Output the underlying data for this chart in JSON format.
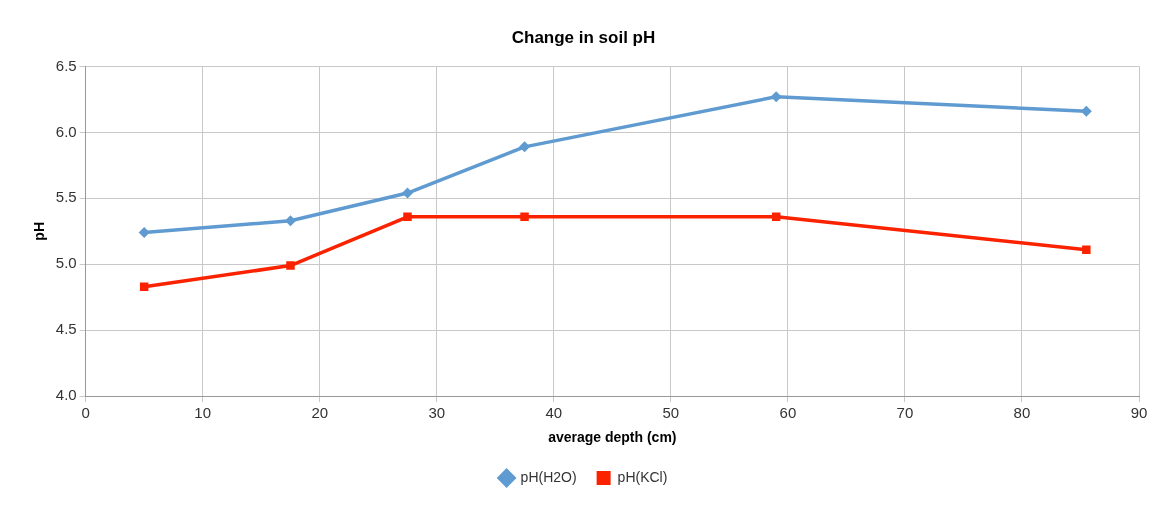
{
  "chart_data": {
    "type": "line",
    "title": "Change in soil pH",
    "xlabel": "average depth (cm)",
    "ylabel": "pH",
    "xlim": [
      0,
      90
    ],
    "xticks": [
      0,
      10,
      20,
      30,
      40,
      50,
      60,
      70,
      80,
      90
    ],
    "ylim": [
      4.0,
      6.5
    ],
    "yticks": [
      {
        "value": 4,
        "label": "4.0"
      },
      {
        "value": 4.5,
        "label": "4.5"
      },
      {
        "value": 5,
        "label": "5.0"
      },
      {
        "value": 5.5,
        "label": "5.5"
      },
      {
        "value": 6,
        "label": "6.0"
      },
      {
        "value": 6.5,
        "label": "6.5"
      }
    ],
    "x": [
      5,
      17.5,
      27.5,
      37.5,
      59,
      85.5
    ],
    "series": [
      {
        "name": "pH(H2O)",
        "color": "#5f9bd0",
        "marker": "diamond",
        "values": [
          5.24,
          5.33,
          5.54,
          5.89,
          6.27,
          6.16
        ]
      },
      {
        "name": "pH(KCl)",
        "color": "#fb2200",
        "marker": "square",
        "values": [
          4.83,
          4.99,
          5.36,
          5.36,
          5.36,
          5.11
        ]
      }
    ],
    "grid": true,
    "legend": "bottom",
    "line_style": "solid"
  }
}
